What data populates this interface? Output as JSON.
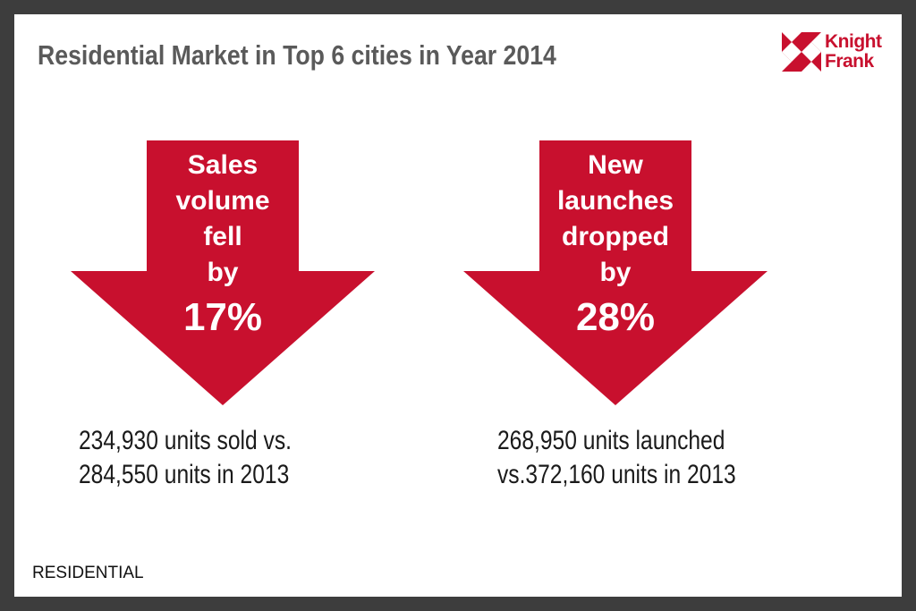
{
  "title": "Residential Market in Top 6 cities in Year 2014",
  "logo": {
    "line1": "Knight",
    "line2": "Frank",
    "color": "#c8102e"
  },
  "arrows": [
    {
      "lines": [
        "Sales",
        "volume",
        "fell",
        "by"
      ],
      "percent": "17%"
    },
    {
      "lines": [
        "New",
        "launches",
        "dropped",
        "by"
      ],
      "percent": "28%"
    }
  ],
  "captions": [
    {
      "line1": "234,930 units sold vs.",
      "line2": "284,550 units in 2013"
    },
    {
      "line1": "268,950 units launched",
      "line2": "vs.372,160 units in 2013"
    }
  ],
  "footer": "RESIDENTIAL",
  "accent_color": "#c8102e"
}
